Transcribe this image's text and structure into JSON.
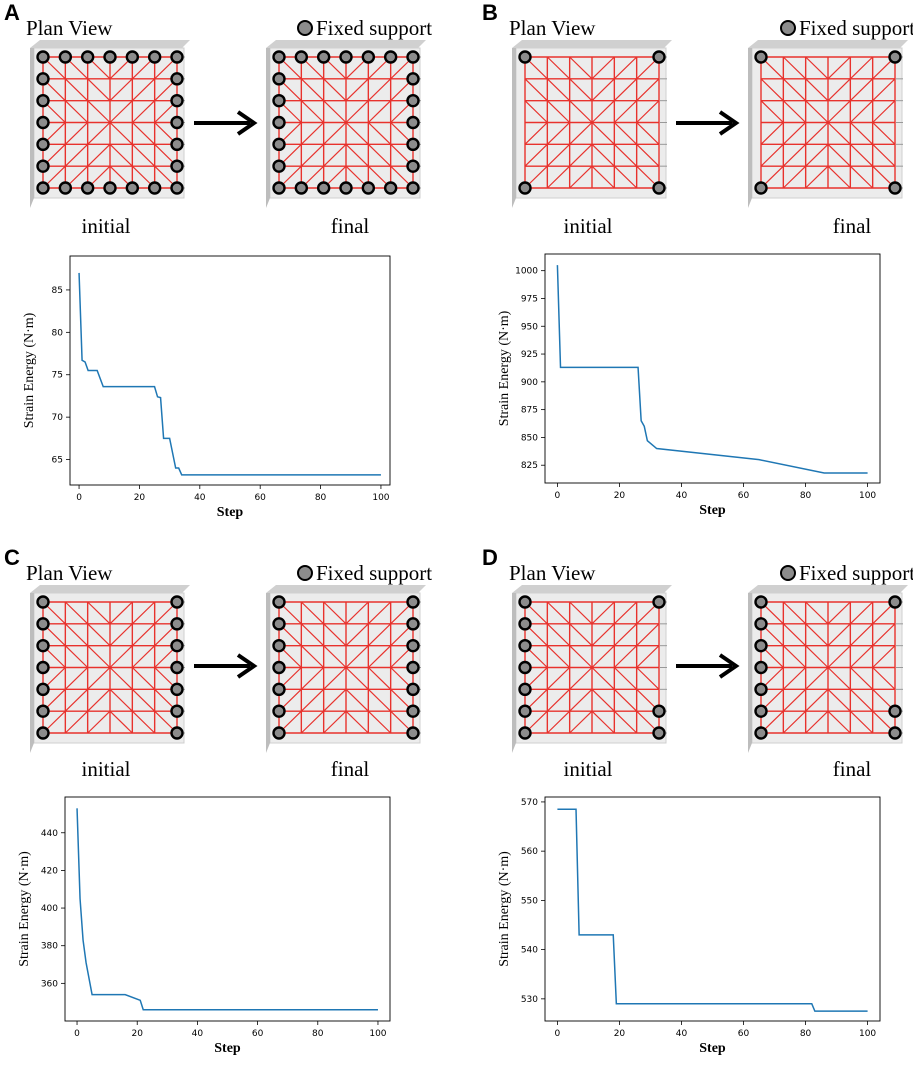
{
  "legend": {
    "fixed_support": "Fixed support"
  },
  "common": {
    "plan_view": "Plan View",
    "initial": "initial",
    "final": "final"
  },
  "chart_data": [
    {
      "panel": "A",
      "type": "line",
      "title": "",
      "xlabel": "Step",
      "ylabel": "Strain Energy (N·m)",
      "xlim": [
        -3,
        103
      ],
      "ylim": [
        62,
        89
      ],
      "xticks": [
        0,
        20,
        40,
        60,
        80,
        100
      ],
      "yticks": [
        65,
        70,
        75,
        80,
        85
      ],
      "series": [
        {
          "name": "strain energy",
          "color": "#1f77b4",
          "x": [
            0,
            1,
            2,
            3,
            6,
            8,
            25,
            26,
            27,
            28,
            30,
            32,
            33,
            34,
            100
          ],
          "y": [
            87,
            76.7,
            76.5,
            75.5,
            75.5,
            73.6,
            73.6,
            72.4,
            72.3,
            67.5,
            67.5,
            64.0,
            64.0,
            63.2,
            63.2
          ]
        }
      ]
    },
    {
      "panel": "B",
      "type": "line",
      "title": "",
      "xlabel": "Step",
      "ylabel": "Strain Energy (N·m)",
      "xlim": [
        -4,
        104
      ],
      "ylim": [
        809,
        1015
      ],
      "xticks": [
        0,
        20,
        40,
        60,
        80,
        100
      ],
      "yticks": [
        825,
        850,
        875,
        900,
        925,
        950,
        975,
        1000
      ],
      "series": [
        {
          "name": "strain energy",
          "color": "#1f77b4",
          "x": [
            0,
            1,
            26,
            27,
            28,
            29,
            32,
            65,
            86,
            100
          ],
          "y": [
            1005,
            913,
            913,
            865,
            860,
            847,
            840,
            830,
            818,
            818
          ]
        }
      ]
    },
    {
      "panel": "C",
      "type": "line",
      "title": "",
      "xlabel": "Step",
      "ylabel": "Strain Energy (N·m)",
      "xlim": [
        -4,
        104
      ],
      "ylim": [
        340,
        459
      ],
      "xticks": [
        0,
        20,
        40,
        60,
        80,
        100
      ],
      "yticks": [
        360,
        380,
        400,
        420,
        440
      ],
      "series": [
        {
          "name": "strain energy",
          "color": "#1f77b4",
          "x": [
            0,
            1,
            2,
            3,
            5,
            16,
            21,
            22,
            100
          ],
          "y": [
            453,
            405,
            383,
            371,
            354,
            354,
            351,
            346,
            346
          ]
        }
      ]
    },
    {
      "panel": "D",
      "type": "line",
      "title": "",
      "xlabel": "Step",
      "ylabel": "Strain Energy (N·m)",
      "xlim": [
        -4,
        104
      ],
      "ylim": [
        525.5,
        571
      ],
      "xticks": [
        0,
        20,
        40,
        60,
        80,
        100
      ],
      "yticks": [
        530,
        540,
        550,
        560,
        570
      ],
      "series": [
        {
          "name": "strain energy",
          "color": "#1f77b4",
          "x": [
            0,
            6,
            7,
            18,
            19,
            82,
            83,
            100
          ],
          "y": [
            568.5,
            568.5,
            543,
            543,
            529,
            529,
            527.5,
            527.5
          ]
        }
      ]
    }
  ]
}
